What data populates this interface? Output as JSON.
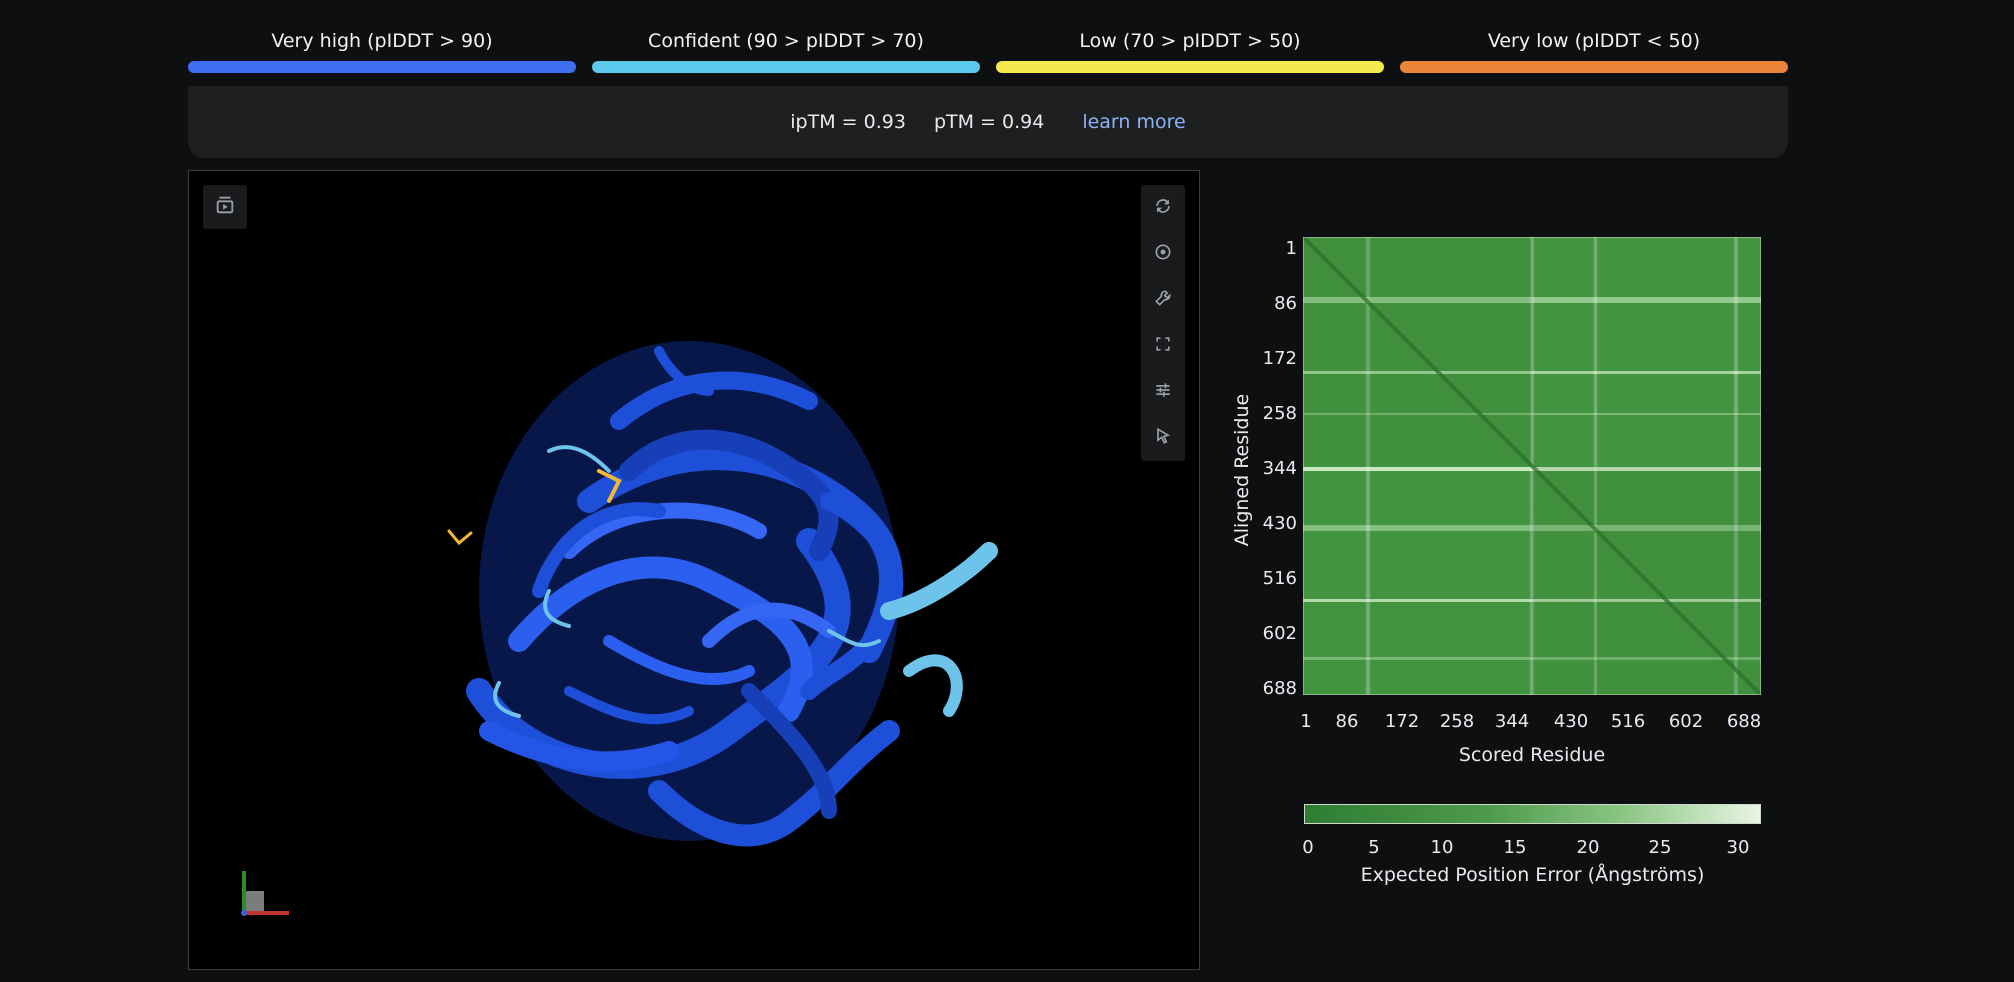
{
  "legend": [
    {
      "label": "Very high (pIDDT > 90)",
      "color": "#3f6ff1"
    },
    {
      "label": "Confident (90 > pIDDT > 70)",
      "color": "#5cc9ec"
    },
    {
      "label": "Low (70 > pIDDT > 50)",
      "color": "#f4ea4d"
    },
    {
      "label": "Very low (pIDDT < 50)",
      "color": "#ea853a"
    }
  ],
  "metrics": {
    "iptm": "ipTM = 0.93",
    "ptm": "pTM = 0.94",
    "learn_more": "learn more"
  },
  "viewer": {
    "tools": [
      "video-icon",
      "rotate-icon",
      "aperture-icon",
      "wrench-icon",
      "fullscreen-icon",
      "sliders-icon",
      "pointer-icon"
    ],
    "protein_color": "#1e4fd8",
    "accent_color": "#6ec3ea",
    "ligand_color": "#f2b833"
  },
  "pae": {
    "ylabel": "Aligned Residue",
    "xlabel": "Scored Residue",
    "ticks": [
      "1",
      "86",
      "172",
      "258",
      "344",
      "430",
      "516",
      "602",
      "688"
    ],
    "colorbar_label": "Expected Position Error (Ångströms)",
    "colorbar_ticks": [
      "0",
      "5",
      "10",
      "15",
      "20",
      "25",
      "30"
    ]
  }
}
